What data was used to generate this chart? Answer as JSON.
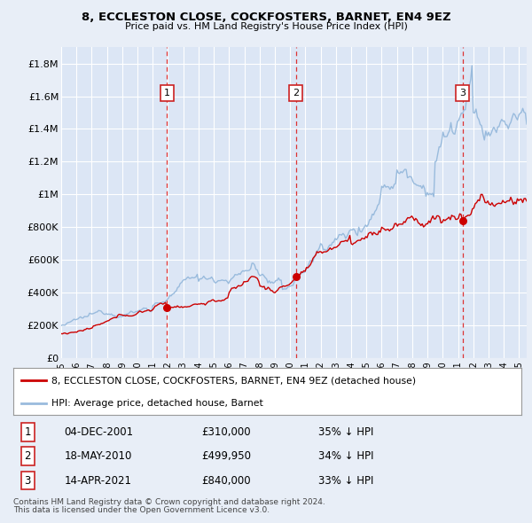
{
  "title": "8, ECCLESTON CLOSE, COCKFOSTERS, BARNET, EN4 9EZ",
  "subtitle": "Price paid vs. HM Land Registry's House Price Index (HPI)",
  "legend_property": "8, ECCLESTON CLOSE, COCKFOSTERS, BARNET, EN4 9EZ (detached house)",
  "legend_hpi": "HPI: Average price, detached house, Barnet",
  "footer1": "Contains HM Land Registry data © Crown copyright and database right 2024.",
  "footer2": "This data is licensed under the Open Government Licence v3.0.",
  "transactions": [
    {
      "num": 1,
      "date": "04-DEC-2001",
      "price": "£310,000",
      "hpi": "35% ↓ HPI",
      "year": 2001.92
    },
    {
      "num": 2,
      "date": "18-MAY-2010",
      "price": "£499,950",
      "hpi": "34% ↓ HPI",
      "year": 2010.38
    },
    {
      "num": 3,
      "date": "14-APR-2021",
      "price": "£840,000",
      "hpi": "33% ↓ HPI",
      "year": 2021.29
    }
  ],
  "transaction_prices": [
    310000,
    499950,
    840000
  ],
  "background_color": "#e8eef7",
  "plot_background": "#dce6f5",
  "grid_color": "#ffffff",
  "red_line_color": "#cc0000",
  "blue_line_color": "#99bbdd",
  "dashed_line_color": "#dd3333",
  "ylim": [
    0,
    1900000
  ],
  "xlim_start": 1995,
  "xlim_end": 2025.5,
  "yticks": [
    0,
    200000,
    400000,
    600000,
    800000,
    1000000,
    1200000,
    1400000,
    1600000,
    1800000
  ],
  "ylabels": [
    "£0",
    "£200K",
    "£400K",
    "£600K",
    "£800K",
    "£1M",
    "£1.2M",
    "£1.4M",
    "£1.6M",
    "£1.8M"
  ]
}
